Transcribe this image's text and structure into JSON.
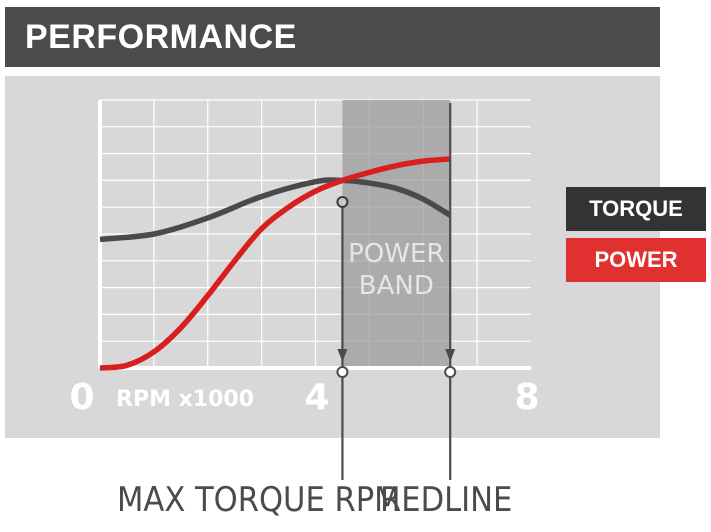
{
  "header": {
    "title": "PERFORMANCE"
  },
  "legend": [
    {
      "label": "TORQUE",
      "color": "#333333"
    },
    {
      "label": "POWER",
      "color": "#e03030"
    }
  ],
  "callouts": {
    "max_torque": "MAX TORQUE RPM",
    "redline": "REDLINE"
  },
  "chart_data": {
    "type": "line",
    "xlabel": "RPM x1000",
    "xlim": [
      0,
      8
    ],
    "ylim": [
      0,
      10
    ],
    "x_ticks": [
      "0",
      "4",
      "8"
    ],
    "grid": true,
    "band": {
      "label_line1": "POWER",
      "label_line2": "BAND",
      "from": 4.5,
      "to": 6.5
    },
    "markers": {
      "max_torque_rpm": 4.5,
      "redline_rpm": 6.5
    },
    "series": [
      {
        "name": "TORQUE",
        "color": "#4a4a4a",
        "x": [
          0,
          1,
          2,
          3,
          4,
          4.5,
          5,
          5.5,
          6,
          6.5
        ],
        "y": [
          4.8,
          5.0,
          5.6,
          6.4,
          6.95,
          7.0,
          6.9,
          6.7,
          6.3,
          5.7
        ]
      },
      {
        "name": "POWER",
        "color": "#d81e1e",
        "x": [
          0,
          0.5,
          1,
          1.5,
          2,
          2.5,
          3,
          3.5,
          4,
          4.5,
          5,
          5.5,
          6,
          6.5
        ],
        "y": [
          0,
          0.1,
          0.6,
          1.5,
          2.7,
          4.0,
          5.2,
          6.0,
          6.6,
          7.0,
          7.3,
          7.55,
          7.72,
          7.8
        ]
      }
    ]
  }
}
